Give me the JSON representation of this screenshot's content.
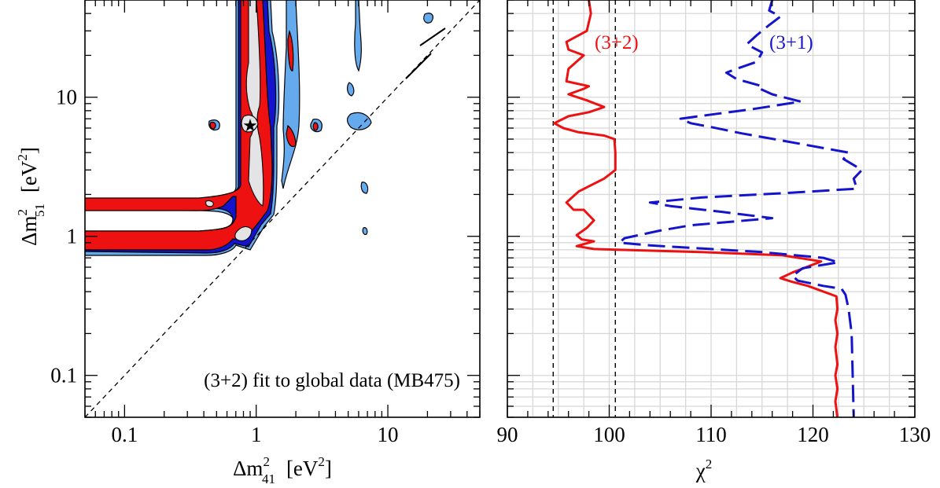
{
  "colors": {
    "red": "#ee1111",
    "blue": "#1414cc",
    "light_blue": "#66aaee",
    "gray_fill": "#e4e4e6",
    "grid": "#d8d8d8"
  },
  "chart_data": [
    {
      "type": "contour",
      "annotation": "(3+2) fit to global data (MB475)",
      "xlabel": {
        "symbol": "Δm",
        "sup": "2",
        "sub": "41",
        "unit_main": "[eV",
        "unit_sup": "2",
        "unit_close": "]"
      },
      "ylabel": {
        "symbol": "Δm",
        "sup": "2",
        "sub": "51",
        "unit_main": "[eV",
        "unit_sup": "2",
        "unit_close": "]"
      },
      "x_scale": "log",
      "y_scale": "log",
      "xlim": [
        0.05,
        50
      ],
      "ylim": [
        0.05,
        50
      ],
      "xticks": [
        {
          "value": 0.1,
          "label": "0.1"
        },
        {
          "value": 1,
          "label": "1"
        },
        {
          "value": 10,
          "label": "10"
        }
      ],
      "yticks": [
        {
          "value": 0.1,
          "label": "0.1"
        },
        {
          "value": 1,
          "label": "1"
        },
        {
          "value": 10,
          "label": "10"
        }
      ],
      "diagonal": "Δm²41 = Δm²51 (dashed)",
      "best_fit": {
        "x": 0.9,
        "y": 6.3,
        "marker": "star"
      },
      "contour_levels": [
        "light_blue",
        "blue",
        "red",
        "gray"
      ]
    },
    {
      "type": "line",
      "xlabel": {
        "symbol": "χ",
        "sup": "2"
      },
      "x_scale": "linear",
      "y_scale": "log",
      "xlim": [
        90,
        130
      ],
      "ylim": [
        0.05,
        50
      ],
      "xticks": [
        {
          "value": 90,
          "label": "90"
        },
        {
          "value": 100,
          "label": "100"
        },
        {
          "value": 110,
          "label": "110"
        },
        {
          "value": 120,
          "label": "120"
        },
        {
          "value": 130,
          "label": "130"
        }
      ],
      "grid": true,
      "reference_lines_x": [
        94.5,
        100.6
      ],
      "series": [
        {
          "name": "(3+2)",
          "color": "#ee1111",
          "style": "solid",
          "points": [
            [
              98.0,
              50
            ],
            [
              98.2,
              40
            ],
            [
              97.8,
              30
            ],
            [
              95.8,
              25
            ],
            [
              96.0,
              22
            ],
            [
              97.5,
              20
            ],
            [
              96.0,
              16
            ],
            [
              95.8,
              13
            ],
            [
              98.0,
              12
            ],
            [
              97.5,
              11.5
            ],
            [
              96.0,
              10.5
            ],
            [
              97.8,
              9.5
            ],
            [
              99.5,
              8.5
            ],
            [
              98.0,
              7.8
            ],
            [
              96.0,
              7.3
            ],
            [
              94.6,
              6.5
            ],
            [
              95.5,
              6.0
            ],
            [
              97.0,
              5.6
            ],
            [
              99.5,
              5.3
            ],
            [
              100.5,
              5.0
            ],
            [
              100.6,
              4.0
            ],
            [
              100.6,
              3.0
            ],
            [
              99.5,
              2.6
            ],
            [
              97.0,
              2.1
            ],
            [
              95.8,
              1.75
            ],
            [
              96.5,
              1.55
            ],
            [
              97.5,
              1.55
            ],
            [
              98.5,
              1.3
            ],
            [
              97.8,
              1.15
            ],
            [
              96.8,
              1.02
            ],
            [
              97.3,
              0.95
            ],
            [
              98.5,
              0.92
            ],
            [
              96.8,
              0.85
            ],
            [
              98.5,
              0.81
            ],
            [
              109.0,
              0.77
            ],
            [
              117.0,
              0.73
            ],
            [
              120.8,
              0.66
            ],
            [
              118.0,
              0.55
            ],
            [
              116.8,
              0.5
            ],
            [
              118.0,
              0.47
            ],
            [
              119.5,
              0.44
            ],
            [
              122.3,
              0.37
            ],
            [
              122.4,
              0.3
            ],
            [
              122.2,
              0.25
            ],
            [
              122.4,
              0.2
            ],
            [
              122.2,
              0.16
            ],
            [
              122.4,
              0.12
            ],
            [
              122.2,
              0.1
            ],
            [
              122.4,
              0.08
            ],
            [
              122.2,
              0.065
            ],
            [
              122.4,
              0.05
            ]
          ]
        },
        {
          "name": "(3+1)",
          "color": "#1414cc",
          "style": "dashed",
          "points": [
            [
              116.0,
              50
            ],
            [
              115.7,
              42
            ],
            [
              116.8,
              38
            ],
            [
              115.7,
              33
            ],
            [
              114.5,
              28
            ],
            [
              113.5,
              24
            ],
            [
              115.0,
              21
            ],
            [
              114.5,
              18
            ],
            [
              112.5,
              16
            ],
            [
              111.5,
              15
            ],
            [
              112.5,
              13.5
            ],
            [
              115.0,
              12.0
            ],
            [
              114.8,
              11.5
            ],
            [
              116.0,
              10.5
            ],
            [
              118.8,
              9.3
            ],
            [
              114.0,
              8.2
            ],
            [
              110.0,
              7.5
            ],
            [
              107.0,
              7.0
            ],
            [
              108.0,
              6.5
            ],
            [
              110.0,
              6.1
            ],
            [
              113.0,
              5.5
            ],
            [
              117.5,
              4.8
            ],
            [
              123.5,
              4.0
            ],
            [
              123.0,
              3.6
            ],
            [
              124.8,
              3.0
            ],
            [
              124.0,
              2.6
            ],
            [
              124.3,
              2.2
            ],
            [
              117.5,
              2.05
            ],
            [
              109.0,
              1.9
            ],
            [
              104.0,
              1.75
            ],
            [
              106.0,
              1.65
            ],
            [
              111.0,
              1.5
            ],
            [
              116.0,
              1.35
            ],
            [
              108.0,
              1.2
            ],
            [
              105.0,
              1.1
            ],
            [
              101.5,
              0.97
            ],
            [
              101.0,
              0.9
            ],
            [
              104.0,
              0.86
            ],
            [
              110.0,
              0.81
            ],
            [
              115.0,
              0.77
            ],
            [
              121.0,
              0.7
            ],
            [
              122.5,
              0.65
            ],
            [
              119.0,
              0.59
            ],
            [
              118.0,
              0.52
            ],
            [
              118.5,
              0.48
            ],
            [
              121.0,
              0.44
            ],
            [
              122.8,
              0.42
            ],
            [
              123.2,
              0.38
            ],
            [
              123.5,
              0.3
            ],
            [
              123.8,
              0.2
            ],
            [
              123.9,
              0.1
            ],
            [
              124.0,
              0.05
            ]
          ]
        }
      ]
    }
  ]
}
